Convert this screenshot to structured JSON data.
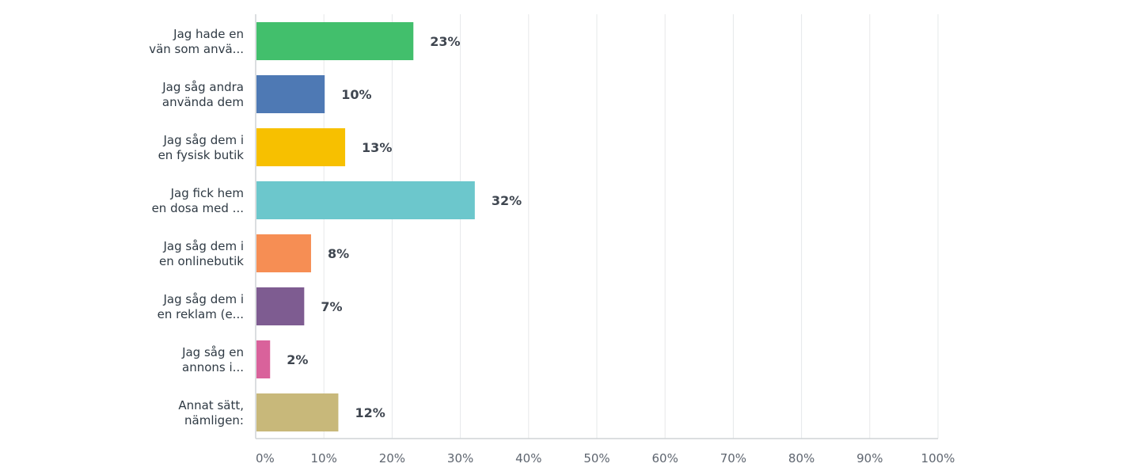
{
  "chart_data": {
    "type": "bar",
    "orientation": "horizontal",
    "categories": [
      [
        "Jag hade en",
        "vän som anvä..."
      ],
      [
        "Jag såg andra",
        "använda dem"
      ],
      [
        "Jag såg dem i",
        "en fysisk butik"
      ],
      [
        "Jag fick hem",
        "en dosa med ..."
      ],
      [
        "Jag såg dem i",
        "en onlinebutik"
      ],
      [
        "Jag såg dem i",
        "en reklam (e..."
      ],
      [
        "Jag såg en",
        "annons i..."
      ],
      [
        "Annat sätt,",
        "nämligen:"
      ]
    ],
    "values": [
      23,
      10,
      13,
      32,
      8,
      7,
      2,
      12
    ],
    "value_labels": [
      "23%",
      "10%",
      "13%",
      "32%",
      "8%",
      "7%",
      "2%",
      "12%"
    ],
    "colors": [
      "#42bf6c",
      "#4e79b4",
      "#f7c000",
      "#6cc7cc",
      "#f68e54",
      "#7e5c91",
      "#d9629b",
      "#c8b87a"
    ],
    "xlim": [
      0,
      100
    ],
    "x_ticks": [
      "0%",
      "10%",
      "20%",
      "30%",
      "40%",
      "50%",
      "60%",
      "70%",
      "80%",
      "90%",
      "100%"
    ],
    "grid": true,
    "title": "",
    "xlabel": "",
    "ylabel": ""
  }
}
